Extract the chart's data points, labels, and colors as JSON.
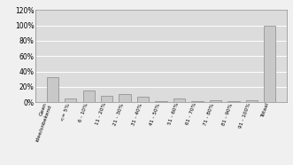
{
  "categories": [
    "Geen\nidee/onbekend",
    "<= 5%",
    "6 - 10%",
    "11 - 20%",
    "21 - 30%",
    "31 - 40%",
    "41 - 50%",
    "51 - 60%",
    "61 - 70%",
    "71 - 80%",
    "81 - 90%",
    "91 - 100%",
    "Totaal"
  ],
  "values": [
    33,
    5,
    15,
    9,
    11,
    7,
    2,
    5,
    2,
    3,
    2,
    3,
    100
  ],
  "bar_color": "#c8c8c8",
  "bar_edge_color": "#888888",
  "ylim": [
    0,
    120
  ],
  "yticks": [
    0,
    20,
    40,
    60,
    80,
    100,
    120
  ],
  "ytick_labels": [
    "0%",
    "20%",
    "40%",
    "60%",
    "80%",
    "100%",
    "120%"
  ],
  "background_color": "#f0f0f0",
  "plot_bg_color": "#dcdcdc",
  "grid_color": "#ffffff",
  "figsize": [
    3.31,
    1.86
  ],
  "dpi": 100
}
